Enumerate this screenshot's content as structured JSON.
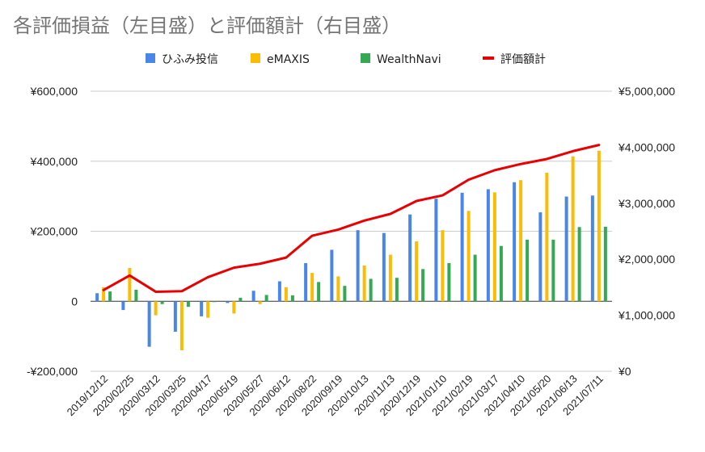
{
  "chart_data": {
    "type": "bar",
    "title": "各評価損益（左目盛）と評価額計（右目盛）",
    "legend_position": "top",
    "grid": true,
    "categories": [
      "2019/12/12",
      "2020/02/25",
      "2020/03/12",
      "2020/03/25",
      "2020/04/17",
      "2020/05/19",
      "2020/05/27",
      "2020/06/12",
      "2020/08/22",
      "2020/09/19",
      "2020/10/13",
      "2020/11/13",
      "2020/12/19",
      "2021/01/10",
      "2021/02/19",
      "2021/03/17",
      "2021/04/10",
      "2021/05/20",
      "2021/06/13",
      "2021/07/11"
    ],
    "y_left": {
      "min": -200000,
      "max": 600000,
      "ticks": [
        -200000,
        0,
        200000,
        400000,
        600000
      ],
      "tick_labels": [
        "-¥200,000",
        "0",
        "¥200,000",
        "¥400,000",
        "¥600,000"
      ]
    },
    "y_right": {
      "min": 0,
      "max": 5000000,
      "ticks": [
        0,
        1000000,
        2000000,
        3000000,
        4000000,
        5000000
      ],
      "tick_labels": [
        "¥0",
        "¥1,000,000",
        "¥2,000,000",
        "¥3,000,000",
        "¥4,000,000",
        "¥5,000,000"
      ]
    },
    "series": [
      {
        "name": "ひふみ投信",
        "type": "bar",
        "axis": "left",
        "color": "#4a86e8",
        "values": [
          23000,
          -25000,
          -130000,
          -87000,
          -43000,
          -5000,
          30000,
          57000,
          109000,
          147000,
          203000,
          195000,
          248000,
          293000,
          310000,
          320000,
          340000,
          254000,
          299000,
          302000
        ]
      },
      {
        "name": "eMAXIS",
        "type": "bar",
        "axis": "left",
        "color": "#fbbc04",
        "values": [
          40000,
          95000,
          -40000,
          -140000,
          -47000,
          -35000,
          -8000,
          40000,
          81000,
          71000,
          102000,
          133000,
          171000,
          203000,
          258000,
          311000,
          346000,
          367000,
          414000,
          430000
        ]
      },
      {
        "name": "WealthNavi",
        "type": "bar",
        "axis": "left",
        "color": "#34a853",
        "values": [
          28000,
          33000,
          -8000,
          -16000,
          -2000,
          10000,
          18000,
          17000,
          55000,
          44000,
          64000,
          67000,
          92000,
          109000,
          133000,
          158000,
          176000,
          176000,
          212000,
          213000
        ]
      },
      {
        "name": "評価額計",
        "type": "line",
        "axis": "right",
        "color": "#ea0000",
        "values": [
          1450000,
          1710000,
          1420000,
          1430000,
          1680000,
          1850000,
          1920000,
          2030000,
          2420000,
          2530000,
          2690000,
          2810000,
          3040000,
          3140000,
          3420000,
          3590000,
          3700000,
          3790000,
          3930000,
          4040000
        ]
      }
    ]
  }
}
